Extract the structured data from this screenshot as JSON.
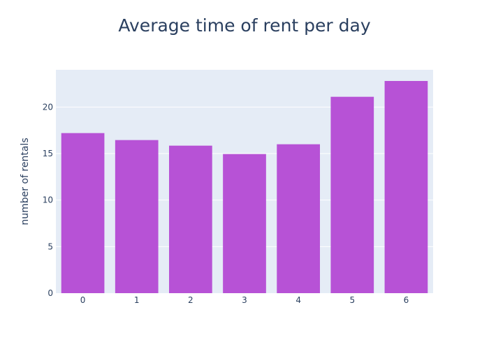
{
  "chart_data": {
    "type": "bar",
    "title": "Average time of rent per day",
    "xlabel": "",
    "ylabel": "number of rentals",
    "categories": [
      "0",
      "1",
      "2",
      "3",
      "4",
      "5",
      "6"
    ],
    "values": [
      17.2,
      16.45,
      15.85,
      14.95,
      16.0,
      21.1,
      22.8
    ],
    "ylim": [
      0,
      24
    ],
    "yticks": [
      0,
      5,
      10,
      15,
      20
    ],
    "grid": true,
    "legend": "none",
    "colors": {
      "bar": "#b752d6",
      "plot_bg": "#e5ecf6",
      "grid": "#ffffff",
      "text": "#2a3f5f"
    }
  }
}
